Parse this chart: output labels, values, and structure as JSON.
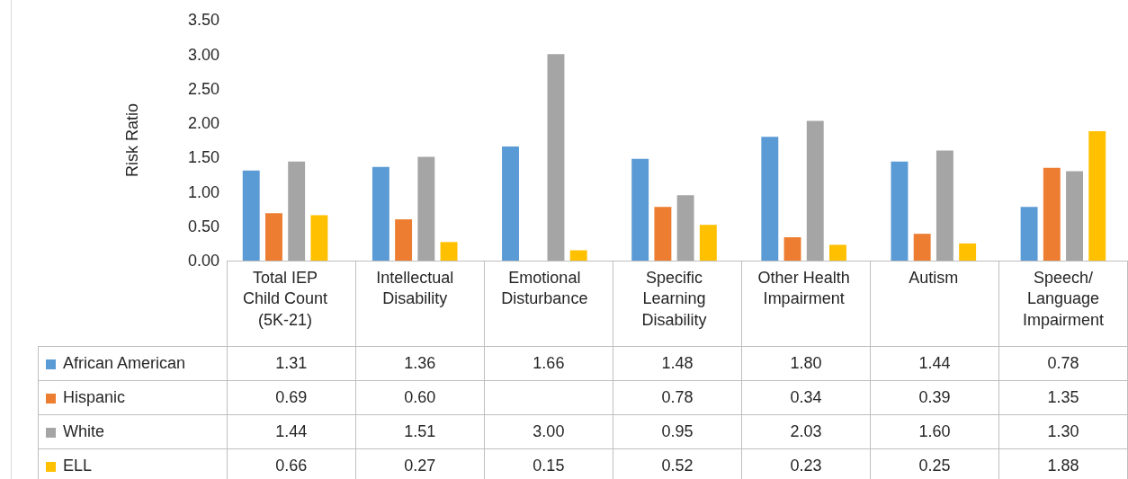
{
  "chart_data": {
    "type": "bar",
    "ylabel": "Risk Ratio",
    "categories": [
      "Total IEP Child Count (5K-21)",
      "Intellectual Disability",
      "Emotional Disturbance",
      "Specific Learning Disability",
      "Other Health Impairment",
      "Autism",
      "Speech/Language Impairment"
    ],
    "series": [
      {
        "name": "African American",
        "color": "#5b9bd5",
        "values": [
          1.31,
          1.36,
          1.66,
          1.48,
          1.8,
          1.44,
          0.78
        ],
        "value_labels": [
          "1.31",
          "1.36",
          "1.66",
          "1.48",
          "1.80",
          "1.44",
          "0.78"
        ]
      },
      {
        "name": "Hispanic",
        "color": "#ed7d31",
        "values": [
          0.69,
          0.6,
          null,
          0.78,
          0.34,
          0.39,
          1.35
        ],
        "value_labels": [
          "0.69",
          "0.60",
          null,
          "0.78",
          "0.34",
          "0.39",
          "1.35"
        ]
      },
      {
        "name": "White",
        "color": "#a5a5a5",
        "values": [
          1.44,
          1.51,
          3.0,
          0.95,
          2.03,
          1.6,
          1.3
        ],
        "value_labels": [
          "1.44",
          "1.51",
          "3.00",
          "0.95",
          "2.03",
          "1.60",
          "1.30"
        ]
      },
      {
        "name": "ELL",
        "color": "#ffc000",
        "values": [
          0.66,
          0.27,
          0.15,
          0.52,
          0.23,
          0.25,
          1.88
        ],
        "value_labels": [
          "0.66",
          "0.27",
          "0.15",
          "0.52",
          "0.23",
          "0.25",
          "1.88"
        ]
      }
    ],
    "ylim": [
      0,
      3.5
    ],
    "yticks": [
      {
        "value": 0,
        "label": "0.00"
      },
      {
        "value": 0.5,
        "label": "0.50"
      },
      {
        "value": 1,
        "label": "1.00"
      },
      {
        "value": 1.5,
        "label": "1.50"
      },
      {
        "value": 2,
        "label": "2.00"
      },
      {
        "value": 2.5,
        "label": "2.50"
      },
      {
        "value": 3,
        "label": "3.00"
      },
      {
        "value": 3.5,
        "label": "3.50"
      }
    ],
    "grid": false,
    "legend": "bottom left"
  }
}
